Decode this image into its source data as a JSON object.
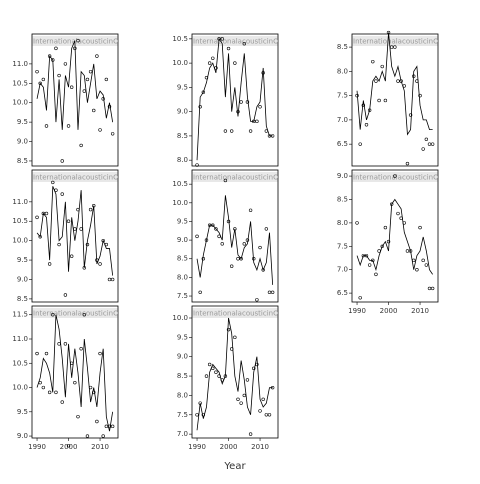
{
  "chart_data": [
    {
      "type": "line",
      "title": "InternationalacousticinOcto",
      "x": [
        1990,
        1991,
        1992,
        1993,
        1994,
        1995,
        1996,
        1997,
        1998,
        1999,
        2000,
        2001,
        2002,
        2003,
        2004,
        2005,
        2006,
        2007,
        2008,
        2009,
        2010,
        2011,
        2012,
        2013,
        2014
      ],
      "xlim": [
        1988.4,
        2015.7
      ],
      "ylim": [
        8.37,
        11.77
      ],
      "yticks": [
        8.5,
        {
          "value": 9,
          "label": "9.0"
        },
        9.5,
        {
          "value": 10,
          "label": "10.0"
        },
        10.5,
        {
          "value": 11,
          "label": "11.0"
        }
      ],
      "series": [
        {
          "style": "line",
          "color": "#000000",
          "values": [
            10.1,
            10.5,
            10.4,
            9.8,
            11.2,
            11.1,
            9.5,
            10.6,
            9.3,
            10.7,
            10.4,
            11.4,
            11.6,
            9.3,
            10.8,
            10.7,
            10.0,
            10.5,
            11.0,
            10.1,
            10.3,
            10.2,
            9.6,
            10.0,
            9.5
          ]
        },
        {
          "style": "points",
          "color": "#000000",
          "values": [
            10.8,
            10.5,
            10.6,
            9.4,
            11.2,
            11.1,
            11.4,
            10.7,
            8.5,
            11.0,
            9.4,
            10.4,
            11.4,
            11.6,
            8.9,
            10.3,
            10.6,
            10.8,
            9.8,
            11.2,
            9.3,
            10.1,
            10.6,
            9.9,
            9.2
          ]
        }
      ]
    },
    {
      "type": "line",
      "title": "InternationalacousticinOcto",
      "x": [
        1990,
        1991,
        1992,
        1993,
        1994,
        1995,
        1996,
        1997,
        1998,
        1999,
        2000,
        2001,
        2002,
        2003,
        2004,
        2005,
        2006,
        2007,
        2008,
        2009,
        2010,
        2011,
        2012,
        2013,
        2014
      ],
      "xlim": [
        1988.4,
        2015.7
      ],
      "ylim": [
        7.88,
        10.6
      ],
      "yticks": [
        {
          "value": 8,
          "label": "8.0"
        },
        8.5,
        {
          "value": 9,
          "label": "9.0"
        },
        9.5,
        {
          "value": 10,
          "label": "10.0"
        },
        10.5
      ],
      "series": [
        {
          "style": "line",
          "color": "#000000",
          "values": [
            8.0,
            9.3,
            9.4,
            9.6,
            9.9,
            10.0,
            9.8,
            10.5,
            10.4,
            9.3,
            10.2,
            9.0,
            9.5,
            8.9,
            9.6,
            10.2,
            9.3,
            8.8,
            8.8,
            9.1,
            9.2,
            9.9,
            8.7,
            8.5,
            8.5
          ]
        },
        {
          "style": "points",
          "color": "#000000",
          "values": [
            7.9,
            9.1,
            9.4,
            9.7,
            10.0,
            10.1,
            9.9,
            10.5,
            10.5,
            8.6,
            10.3,
            8.6,
            10.0,
            9.0,
            9.2,
            10.4,
            9.2,
            8.6,
            8.8,
            8.8,
            9.1,
            9.8,
            8.6,
            8.5,
            8.5
          ]
        }
      ]
    },
    {
      "type": "line",
      "title": "InternationalacousticinOcto",
      "x": [
        1990,
        1991,
        1992,
        1993,
        1994,
        1995,
        1996,
        1997,
        1998,
        1999,
        2000,
        2001,
        2002,
        2003,
        2004,
        2005,
        2006,
        2007,
        2008,
        2009,
        2010,
        2011,
        2012,
        2013,
        2014
      ],
      "xlim": [
        1988.4,
        2015.7
      ],
      "ylim": [
        6.05,
        8.77
      ],
      "yticks": [
        6.5,
        {
          "value": 7,
          "label": "7.0"
        },
        7.5,
        {
          "value": 8,
          "label": "8.0"
        },
        8.5
      ],
      "series": [
        {
          "style": "line",
          "color": "#000000",
          "values": [
            7.6,
            6.8,
            7.4,
            7.0,
            7.2,
            7.8,
            7.9,
            7.8,
            8.0,
            7.8,
            8.8,
            8.1,
            7.9,
            8.1,
            7.8,
            7.6,
            6.7,
            6.8,
            8.0,
            8.1,
            7.3,
            7.0,
            7.0,
            6.8,
            6.8
          ]
        },
        {
          "style": "points",
          "color": "#000000",
          "values": [
            7.5,
            6.5,
            7.3,
            6.9,
            7.2,
            8.2,
            7.8,
            7.4,
            8.1,
            7.4,
            8.8,
            8.5,
            8.5,
            7.8,
            7.8,
            7.7,
            6.1,
            7.1,
            7.9,
            7.8,
            7.5,
            6.4,
            6.6,
            6.5,
            6.5
          ]
        }
      ]
    },
    {
      "type": "line",
      "title": "InternationalacousticinOcto",
      "x": [
        1990,
        1991,
        1992,
        1993,
        1994,
        1995,
        1996,
        1997,
        1998,
        1999,
        2000,
        2001,
        2002,
        2003,
        2004,
        2005,
        2006,
        2007,
        2008,
        2009,
        2010,
        2011,
        2012,
        2013,
        2014
      ],
      "xlim": [
        1988.4,
        2015.7
      ],
      "ylim": [
        8.42,
        11.82
      ],
      "yticks": [
        8.5,
        {
          "value": 9,
          "label": "9.0"
        },
        9.5,
        {
          "value": 10,
          "label": "10.0"
        },
        10.5,
        {
          "value": 11,
          "label": "11.0"
        }
      ],
      "series": [
        {
          "style": "line",
          "color": "#000000",
          "values": [
            10.2,
            10.1,
            10.7,
            10.6,
            9.5,
            11.4,
            11.2,
            10.0,
            10.1,
            11.0,
            9.2,
            10.6,
            10.0,
            10.5,
            11.3,
            9.3,
            10.0,
            10.4,
            10.9,
            9.4,
            9.6,
            10.0,
            9.8,
            9.8,
            9.1
          ]
        },
        {
          "style": "points",
          "color": "#000000",
          "values": [
            10.6,
            10.1,
            10.7,
            10.7,
            9.4,
            11.5,
            11.3,
            9.9,
            11.2,
            8.6,
            10.5,
            9.6,
            10.3,
            10.8,
            10.3,
            9.3,
            9.9,
            10.8,
            10.9,
            9.5,
            9.4,
            10.0,
            9.9,
            9.0,
            9.0
          ]
        }
      ]
    },
    {
      "type": "line",
      "title": "InternationalacousticinOcto",
      "x": [
        1990,
        1991,
        1992,
        1993,
        1994,
        1995,
        1996,
        1997,
        1998,
        1999,
        2000,
        2001,
        2002,
        2003,
        2004,
        2005,
        2006,
        2007,
        2008,
        2009,
        2010,
        2011,
        2012,
        2013,
        2014
      ],
      "xlim": [
        1988.4,
        2015.7
      ],
      "ylim": [
        7.34,
        10.88
      ],
      "yticks": [
        7.5,
        {
          "value": 8,
          "label": "8.0"
        },
        8.5,
        {
          "value": 9,
          "label": "9.0"
        },
        9.5,
        {
          "value": 10,
          "label": "10.0"
        },
        10.5
      ],
      "series": [
        {
          "style": "line",
          "color": "#000000",
          "values": [
            8.5,
            8.0,
            8.6,
            9.0,
            9.4,
            9.4,
            9.3,
            9.2,
            9.0,
            10.2,
            9.6,
            8.8,
            9.3,
            8.6,
            8.5,
            8.8,
            8.9,
            9.5,
            8.4,
            8.2,
            8.5,
            8.2,
            8.4,
            9.2,
            7.8
          ]
        },
        {
          "style": "points",
          "color": "#000000",
          "values": [
            9.1,
            7.6,
            8.5,
            9.0,
            9.4,
            9.4,
            9.3,
            9.1,
            8.9,
            10.6,
            9.5,
            8.3,
            9.3,
            8.5,
            8.5,
            8.9,
            9.0,
            9.8,
            8.5,
            7.4,
            8.8,
            8.2,
            9.3,
            7.6,
            7.6
          ]
        }
      ]
    },
    {
      "type": "line",
      "title": "InternationalacousticinOcto",
      "x": [
        1990,
        1991,
        1992,
        1993,
        1994,
        1995,
        1996,
        1997,
        1998,
        1999,
        2000,
        2001,
        2002,
        2003,
        2004,
        2005,
        2006,
        2007,
        2008,
        2009,
        2010,
        2011,
        2012,
        2013,
        2014
      ],
      "xlim": [
        1988.4,
        2015.7
      ],
      "xticks": [
        1990,
        2000,
        2010
      ],
      "ylim": [
        6.31,
        9.13
      ],
      "yticks": [
        6.5,
        {
          "value": 7,
          "label": "7.0"
        },
        7.5,
        {
          "value": 8,
          "label": "8.0"
        },
        8.5,
        {
          "value": 9,
          "label": "9.0"
        }
      ],
      "series": [
        {
          "style": "line",
          "color": "#000000",
          "values": [
            7.3,
            7.1,
            7.3,
            7.3,
            7.2,
            7.2,
            7.0,
            7.3,
            7.5,
            7.6,
            7.4,
            8.4,
            8.5,
            8.4,
            8.3,
            7.8,
            7.6,
            7.4,
            7.0,
            7.3,
            7.4,
            7.7,
            7.4,
            7.0,
            6.9
          ]
        },
        {
          "style": "points",
          "color": "#000000",
          "values": [
            8.0,
            6.4,
            7.3,
            7.3,
            7.1,
            7.2,
            6.9,
            7.4,
            7.5,
            7.9,
            7.6,
            8.4,
            9.0,
            8.2,
            8.1,
            8.0,
            7.4,
            7.4,
            7.2,
            7.0,
            7.9,
            7.2,
            7.1,
            6.6,
            6.6
          ]
        }
      ]
    },
    {
      "type": "line",
      "title": "InternationalacousticinOcto",
      "x": [
        1990,
        1991,
        1992,
        1993,
        1994,
        1995,
        1996,
        1997,
        1998,
        1999,
        2000,
        2001,
        2002,
        2003,
        2004,
        2005,
        2006,
        2007,
        2008,
        2009,
        2010,
        2011,
        2012,
        2013,
        2014
      ],
      "xlim": [
        1988.4,
        2015.7
      ],
      "xticks": [
        1990,
        2000,
        2010
      ],
      "ylim": [
        8.96,
        11.68
      ],
      "yticks": [
        {
          "value": 9,
          "label": "9.0"
        },
        9.5,
        {
          "value": 10,
          "label": "10.0"
        },
        10.5,
        {
          "value": 11,
          "label": "11.0"
        },
        11.5
      ],
      "series": [
        {
          "style": "line",
          "color": "#000000",
          "values": [
            10.0,
            10.2,
            10.6,
            10.5,
            10.3,
            9.9,
            11.5,
            11.2,
            10.6,
            9.8,
            10.9,
            10.2,
            10.8,
            10.3,
            9.6,
            11.0,
            10.4,
            9.7,
            10.0,
            9.6,
            10.3,
            10.8,
            9.4,
            9.1,
            9.5
          ]
        },
        {
          "style": "points",
          "color": "#000000",
          "values": [
            10.7,
            10.1,
            10.0,
            10.7,
            9.9,
            11.5,
            9.9,
            10.9,
            9.7,
            10.9,
            8.8,
            10.5,
            10.1,
            9.4,
            10.8,
            11.5,
            9.0,
            10.0,
            9.9,
            9.3,
            10.7,
            9.0,
            9.2,
            9.2,
            9.2
          ]
        }
      ]
    },
    {
      "type": "line",
      "title": "InternationalacousticinOcto",
      "x": [
        1990,
        1991,
        1992,
        1993,
        1994,
        1995,
        1996,
        1997,
        1998,
        1999,
        2000,
        2001,
        2002,
        2003,
        2004,
        2005,
        2006,
        2007,
        2008,
        2009,
        2010,
        2011,
        2012,
        2013,
        2014
      ],
      "xlim": [
        1988.4,
        2015.7
      ],
      "xticks": [
        1990,
        2000,
        2010
      ],
      "xlabel": "Year",
      "ylim": [
        6.9,
        10.31
      ],
      "yticks": [
        {
          "value": 7,
          "label": "7.0"
        },
        7.5,
        {
          "value": 8,
          "label": "8.0"
        },
        8.5,
        {
          "value": 9,
          "label": "9.0"
        },
        9.5,
        {
          "value": 10,
          "label": "10.0"
        }
      ],
      "series": [
        {
          "style": "line",
          "color": "#000000",
          "values": [
            7.1,
            7.8,
            7.4,
            7.7,
            8.6,
            8.8,
            8.7,
            8.6,
            8.3,
            8.5,
            10.0,
            9.6,
            8.5,
            8.1,
            8.9,
            8.4,
            7.7,
            7.5,
            8.6,
            9.0,
            7.9,
            7.7,
            7.8,
            8.2,
            8.2
          ]
        },
        {
          "style": "points",
          "color": "#000000",
          "values": [
            7.5,
            7.8,
            7.5,
            8.5,
            8.8,
            8.7,
            8.6,
            8.5,
            8.4,
            8.5,
            9.7,
            9.2,
            9.5,
            7.9,
            7.8,
            8.0,
            8.4,
            7.0,
            8.7,
            8.8,
            7.6,
            7.9,
            7.5,
            7.5,
            8.2
          ]
        }
      ]
    }
  ]
}
